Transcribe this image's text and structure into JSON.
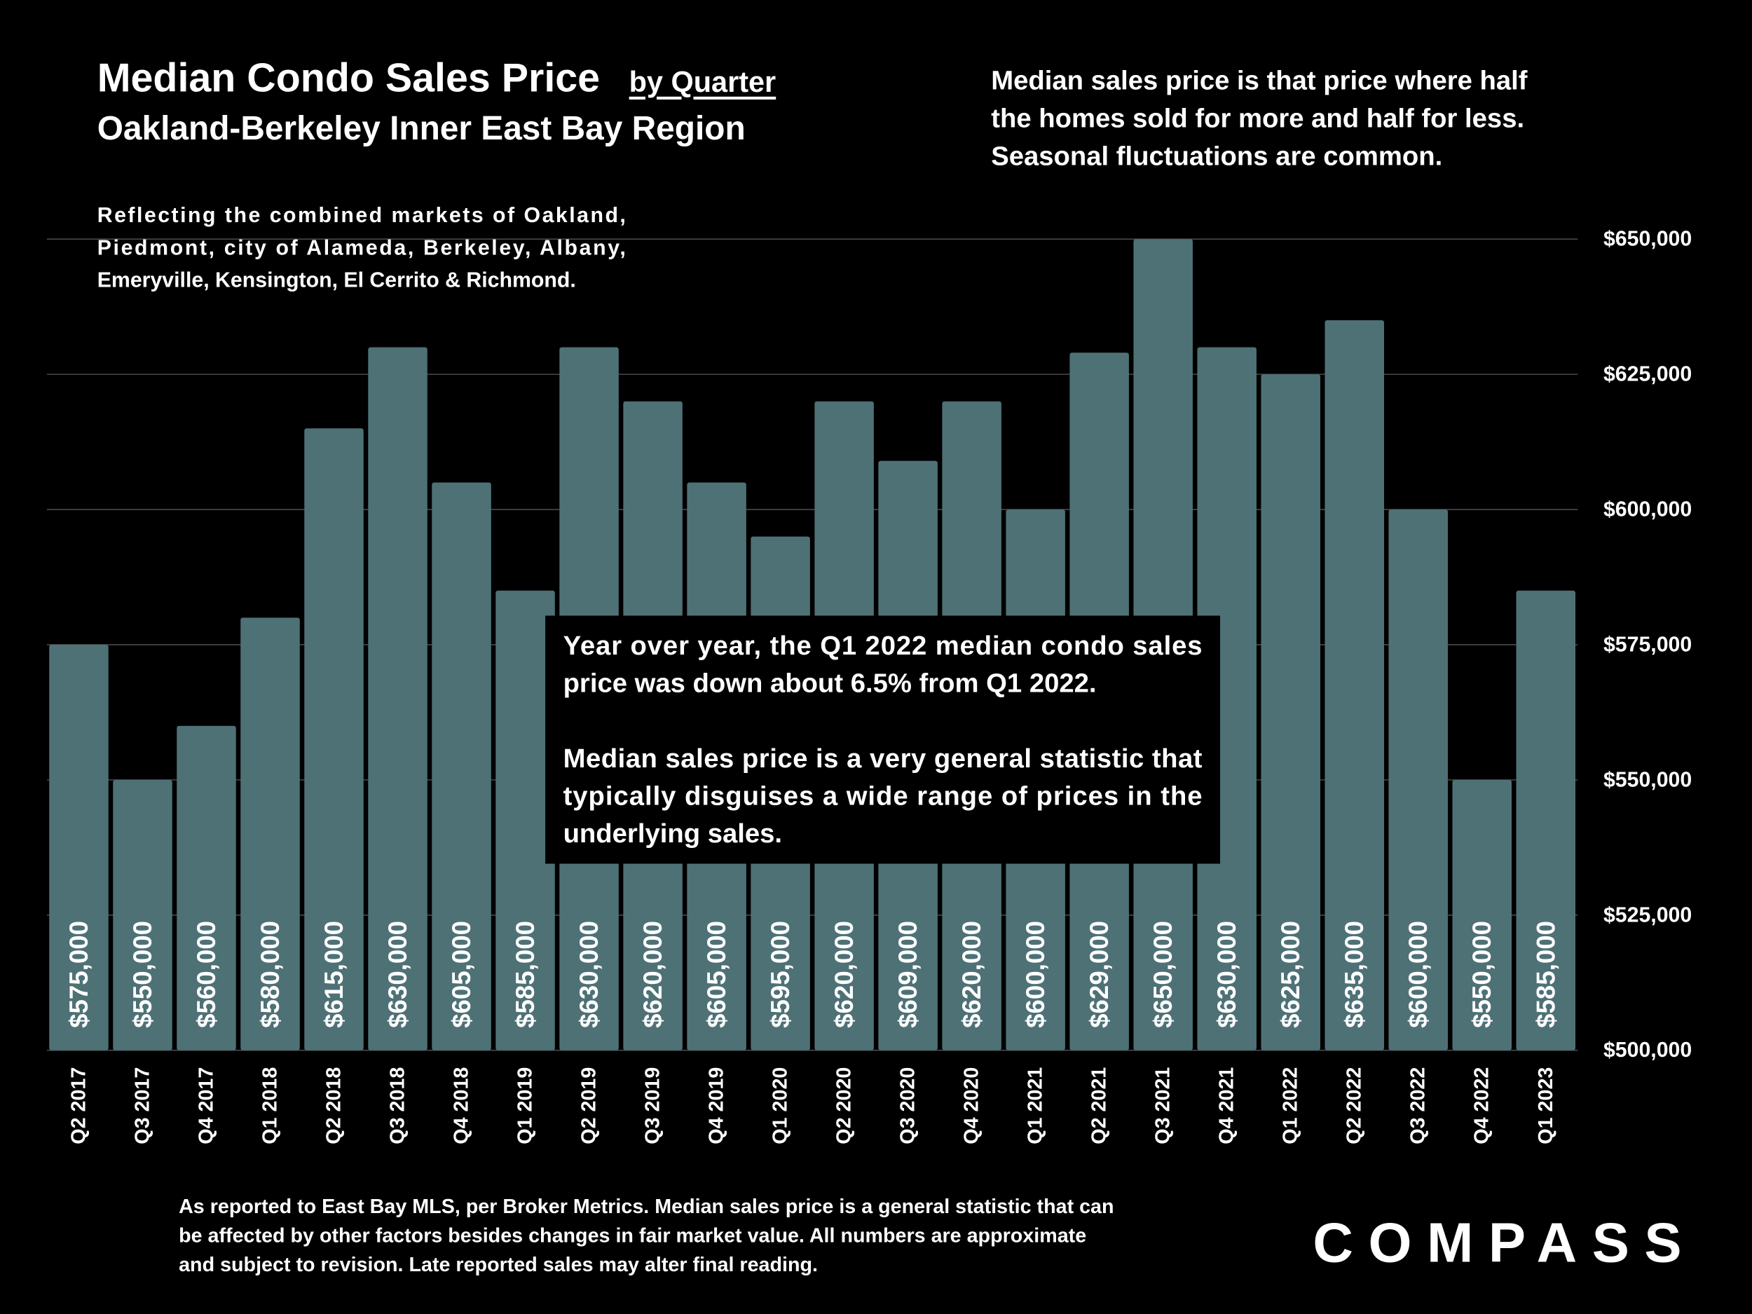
{
  "chart_data": {
    "type": "bar",
    "title": "Median Condo Sales Price",
    "title_suffix": "by Quarter",
    "subtitle": "Oakland-Berkeley Inner East Bay Region",
    "note_right": [
      "Median sales price is that price where half",
      "the homes sold for more and half for less.",
      "Seasonal fluctuations are common."
    ],
    "note_left": [
      "Reflecting the combined markets of Oakland,",
      "Piedmont, city of Alameda, Berkeley, Albany,",
      "Emeryville, Kensington, El Cerrito & Richmond."
    ],
    "annotation": [
      [
        "Year over year, the Q1 2022 median condo sales",
        "price was down about 6.5% from Q1 2022."
      ],
      [
        "Median sales price is a very general statistic that",
        "typically disguises a wide range of prices in the",
        "underlying sales."
      ]
    ],
    "categories": [
      "Q2 2017",
      "Q3 2017",
      "Q4 2017",
      "Q1 2018",
      "Q2 2018",
      "Q3 2018",
      "Q4 2018",
      "Q1 2019",
      "Q2 2019",
      "Q3 2019",
      "Q4 2019",
      "Q1 2020",
      "Q2 2020",
      "Q3 2020",
      "Q4 2020",
      "Q1 2021",
      "Q2 2021",
      "Q3 2021",
      "Q4 2021",
      "Q1 2022",
      "Q2 2022",
      "Q3 2022",
      "Q4 2022",
      "Q1 2023"
    ],
    "values": [
      575000,
      550000,
      560000,
      580000,
      615000,
      630000,
      605000,
      585000,
      630000,
      620000,
      605000,
      595000,
      620000,
      609000,
      620000,
      600000,
      629000,
      650000,
      630000,
      625000,
      635000,
      600000,
      550000,
      585000
    ],
    "value_labels": [
      "$575,000",
      "$550,000",
      "$560,000",
      "$580,000",
      "$615,000",
      "$630,000",
      "$605,000",
      "$585,000",
      "$630,000",
      "$620,000",
      "$605,000",
      "$595,000",
      "$620,000",
      "$609,000",
      "$620,000",
      "$600,000",
      "$629,000",
      "$650,000",
      "$630,000",
      "$625,000",
      "$635,000",
      "$600,000",
      "$550,000",
      "$585,000"
    ],
    "color": "#4e7176",
    "ylim": [
      500000,
      650000
    ],
    "yticks": [
      {
        "value": 500000,
        "label": "$500,000"
      },
      {
        "value": 525000,
        "label": "$525,000"
      },
      {
        "value": 550000,
        "label": "$550,000"
      },
      {
        "value": 575000,
        "label": "$575,000"
      },
      {
        "value": 600000,
        "label": "$600,000"
      },
      {
        "value": 625000,
        "label": "$625,000"
      },
      {
        "value": 650000,
        "label": "$650,000"
      }
    ],
    "grid": true
  },
  "footer": {
    "note": [
      "As reported to East Bay MLS, per Broker Metrics. Median sales price is a general statistic that can",
      "be affected by other factors besides changes in fair market value. All numbers are approximate",
      "and subject to revision. Late reported sales may alter final reading."
    ],
    "logo": "COMPASS"
  }
}
